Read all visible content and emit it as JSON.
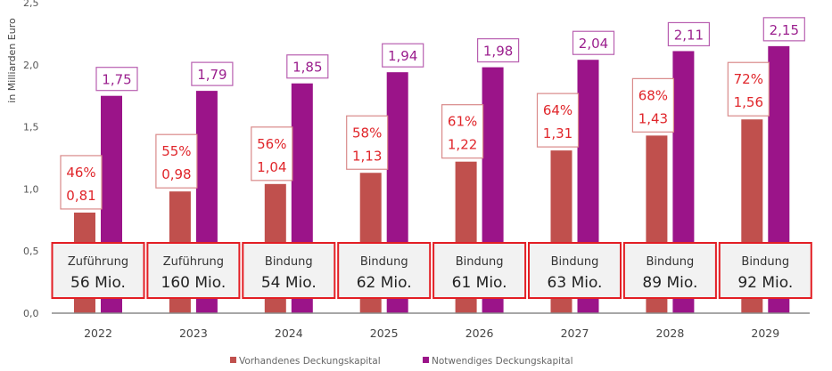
{
  "chart_data": {
    "type": "bar",
    "title": "",
    "xlabel": "",
    "ylabel": "in Milliarden Euro",
    "ylim": [
      0,
      2.5
    ],
    "yticks": [
      "0,0",
      "0,5",
      "1,0",
      "1,5",
      "2,0",
      "2,5"
    ],
    "ytick_values": [
      0,
      0.5,
      1.0,
      1.5,
      2.0,
      2.5
    ],
    "grid": false,
    "legend_position": "bottom",
    "categories": [
      "2022",
      "2023",
      "2024",
      "2025",
      "2026",
      "2027",
      "2028",
      "2029"
    ],
    "series": [
      {
        "name": "Vorhandenes Deckungskapital",
        "color": "#c0504d",
        "label_color": "#e0262b",
        "values": [
          0.81,
          0.98,
          1.04,
          1.13,
          1.22,
          1.31,
          1.43,
          1.56
        ],
        "value_labels": [
          "0,81",
          "0,98",
          "1,04",
          "1,13",
          "1,22",
          "1,31",
          "1,43",
          "1,56"
        ],
        "percent_labels": [
          "46%",
          "55%",
          "56%",
          "58%",
          "61%",
          "64%",
          "68%",
          "72%"
        ]
      },
      {
        "name": "Notwendiges Deckungskapital",
        "color": "#9b1489",
        "label_color": "#9b1f8e",
        "values": [
          1.75,
          1.79,
          1.85,
          1.94,
          1.98,
          2.04,
          2.11,
          2.15
        ],
        "value_labels": [
          "1,75",
          "1,79",
          "1,85",
          "1,94",
          "1,98",
          "2,04",
          "2,11",
          "2,15"
        ]
      }
    ],
    "annotations": [
      {
        "type": "Zuführung",
        "amount": "56 Mio."
      },
      {
        "type": "Zuführung",
        "amount": "160 Mio."
      },
      {
        "type": "Bindung",
        "amount": "54 Mio."
      },
      {
        "type": "Bindung",
        "amount": "62 Mio."
      },
      {
        "type": "Bindung",
        "amount": "61 Mio."
      },
      {
        "type": "Bindung",
        "amount": "63 Mio."
      },
      {
        "type": "Bindung",
        "amount": "89 Mio."
      },
      {
        "type": "Bindung",
        "amount": "92 Mio."
      }
    ],
    "legend": [
      "Vorhandenes Deckungskapital",
      "Notwendiges Deckungskapital"
    ]
  }
}
